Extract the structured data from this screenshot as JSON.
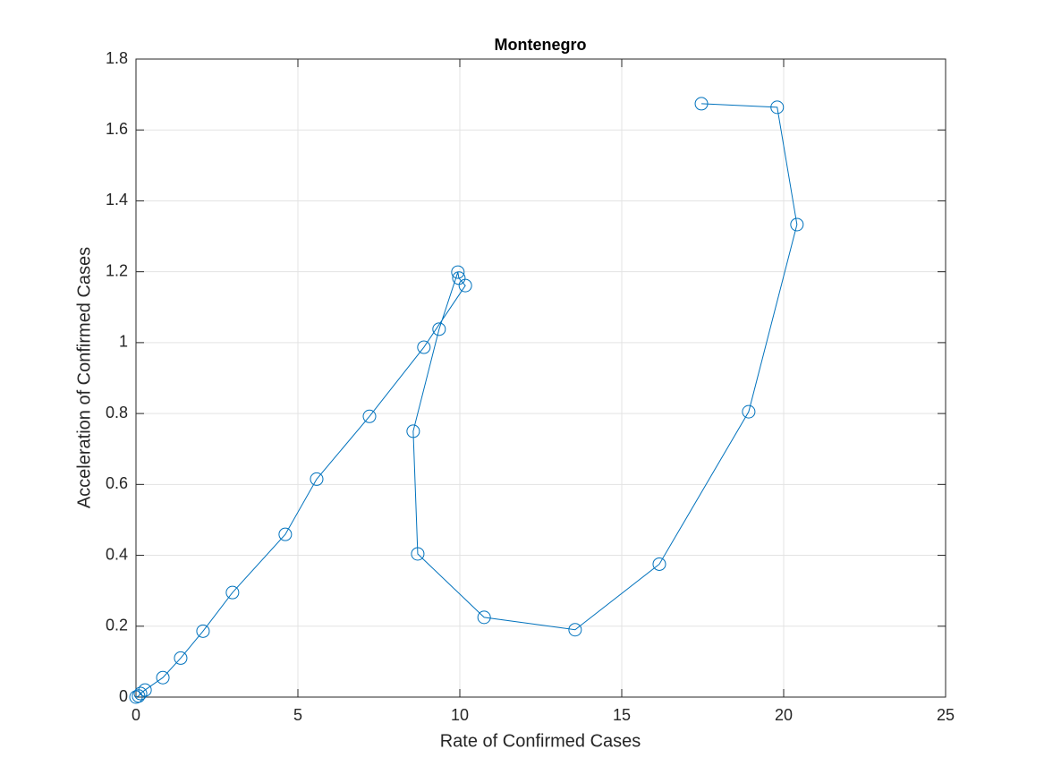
{
  "chart_data": {
    "type": "line",
    "title": "Montenegro",
    "x_label": "Rate of Confirmed Cases",
    "y_label": "Acceleration of Confirmed Cases",
    "series": [
      {
        "color": "#0072bd",
        "marker": "circle",
        "x": [
          0,
          0.08,
          0.14,
          0.28,
          0.83,
          1.38,
          2.07,
          2.98,
          4.61,
          5.58,
          7.21,
          8.89,
          10.17,
          9.97,
          9.94,
          9.36,
          8.56,
          8.7,
          10.75,
          13.56,
          16.16,
          18.92,
          20.41,
          19.8,
          17.46
        ],
        "values": [
          0,
          0.003,
          0.01,
          0.02,
          0.055,
          0.11,
          0.186,
          0.295,
          0.459,
          0.615,
          0.792,
          0.987,
          1.161,
          1.182,
          1.199,
          1.038,
          0.75,
          0.404,
          0.225,
          0.19,
          0.375,
          0.805,
          1.333,
          1.664,
          1.674
        ]
      }
    ],
    "xlim": [
      0,
      25
    ],
    "xticks": [
      0,
      5,
      10,
      15,
      20,
      25
    ],
    "ylim": [
      0,
      1.8
    ],
    "yticks": [
      0,
      0.2,
      0.4,
      0.6,
      0.8,
      1,
      1.2,
      1.4,
      1.6,
      1.8
    ],
    "grid": true
  }
}
